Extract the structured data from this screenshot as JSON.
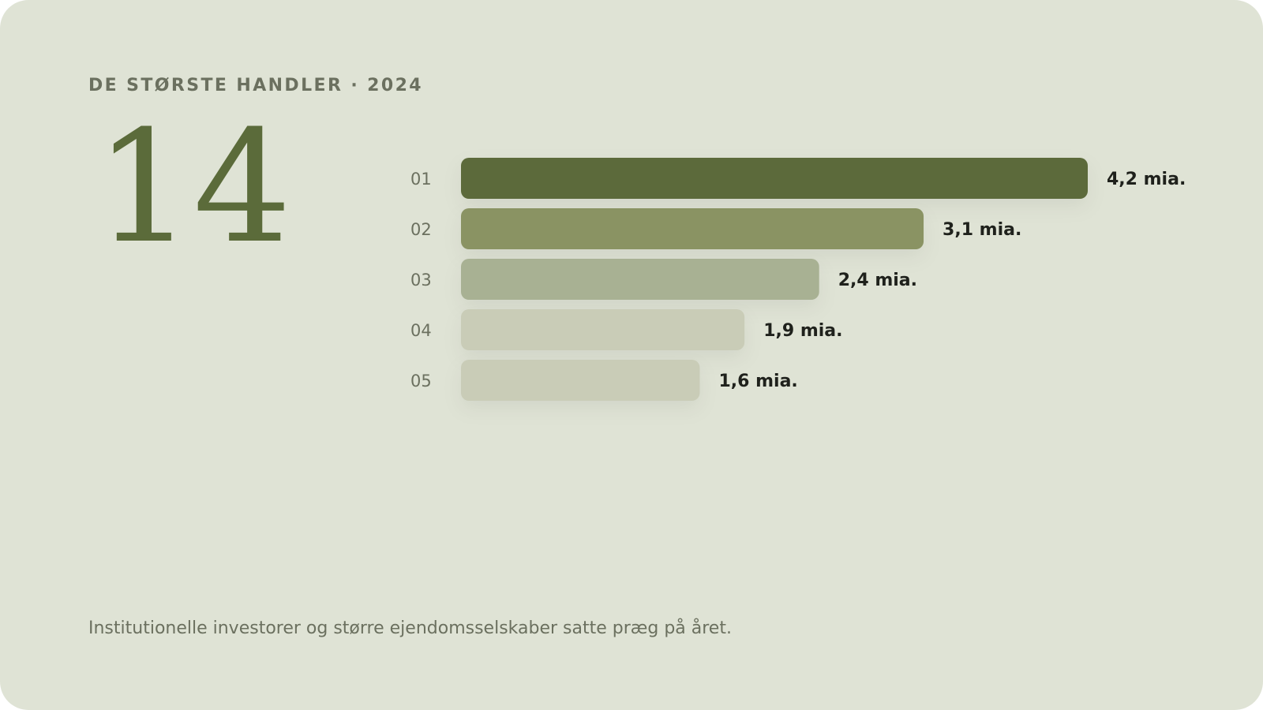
{
  "kicker": "DE STØRSTE HANDLER · 2024",
  "headline_number": "14",
  "caption": "Institutionelle investorer og større ejendomsselskaber satte præg på året.",
  "colors": {
    "background": "#dfe3d5",
    "bar_1": "#5b6b3a",
    "bar_2": "#8a9364",
    "bar_3": "#a8b193",
    "bar_4": "#c9ccb7",
    "bar_5": "#c9ccb7",
    "rank_text": "#6b705f",
    "value_text": "#1f211c"
  },
  "chart_data": {
    "type": "bar",
    "orientation": "horizontal",
    "categories": [
      "01",
      "02",
      "03",
      "04",
      "05"
    ],
    "values": [
      4.2,
      3.1,
      2.4,
      1.9,
      1.6
    ],
    "value_labels": [
      "4,2 mia.",
      "3,1 mia.",
      "2,4 mia.",
      "1,9 mia.",
      "1,6 mia."
    ],
    "xlim": [
      0,
      4.2
    ],
    "grid": false
  }
}
